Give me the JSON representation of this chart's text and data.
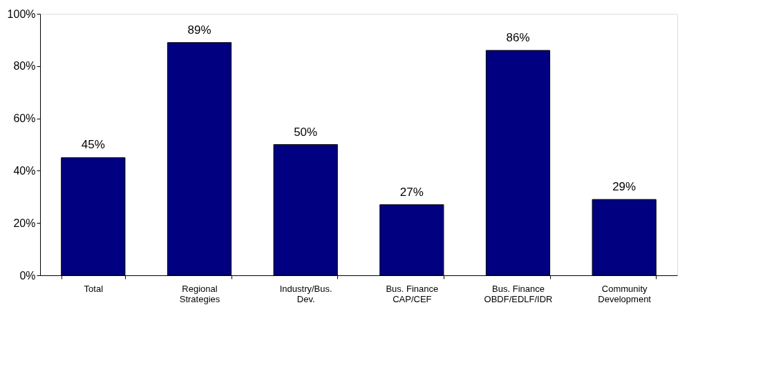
{
  "chart_data": {
    "type": "bar",
    "categories": [
      "Total",
      "Regional\nStrategies",
      "Industry/Bus.\nDev.",
      "Bus. Finance\nCAP/CEF",
      "Bus. Finance\nOBDF/EDLF/IDR",
      "Community\nDevelopment"
    ],
    "values": [
      45,
      89,
      50,
      27,
      86,
      29
    ],
    "value_labels": [
      "45%",
      "89%",
      "50%",
      "27%",
      "86%",
      "29%"
    ],
    "color": "#000080",
    "ylim": [
      0,
      100
    ],
    "yticks": [
      {
        "value": 0,
        "label": "0%"
      },
      {
        "value": 20,
        "label": "20%"
      },
      {
        "value": 40,
        "label": "40%"
      },
      {
        "value": 60,
        "label": "60%"
      },
      {
        "value": 80,
        "label": "80%"
      },
      {
        "value": 100,
        "label": "100%"
      }
    ],
    "grid": false
  }
}
